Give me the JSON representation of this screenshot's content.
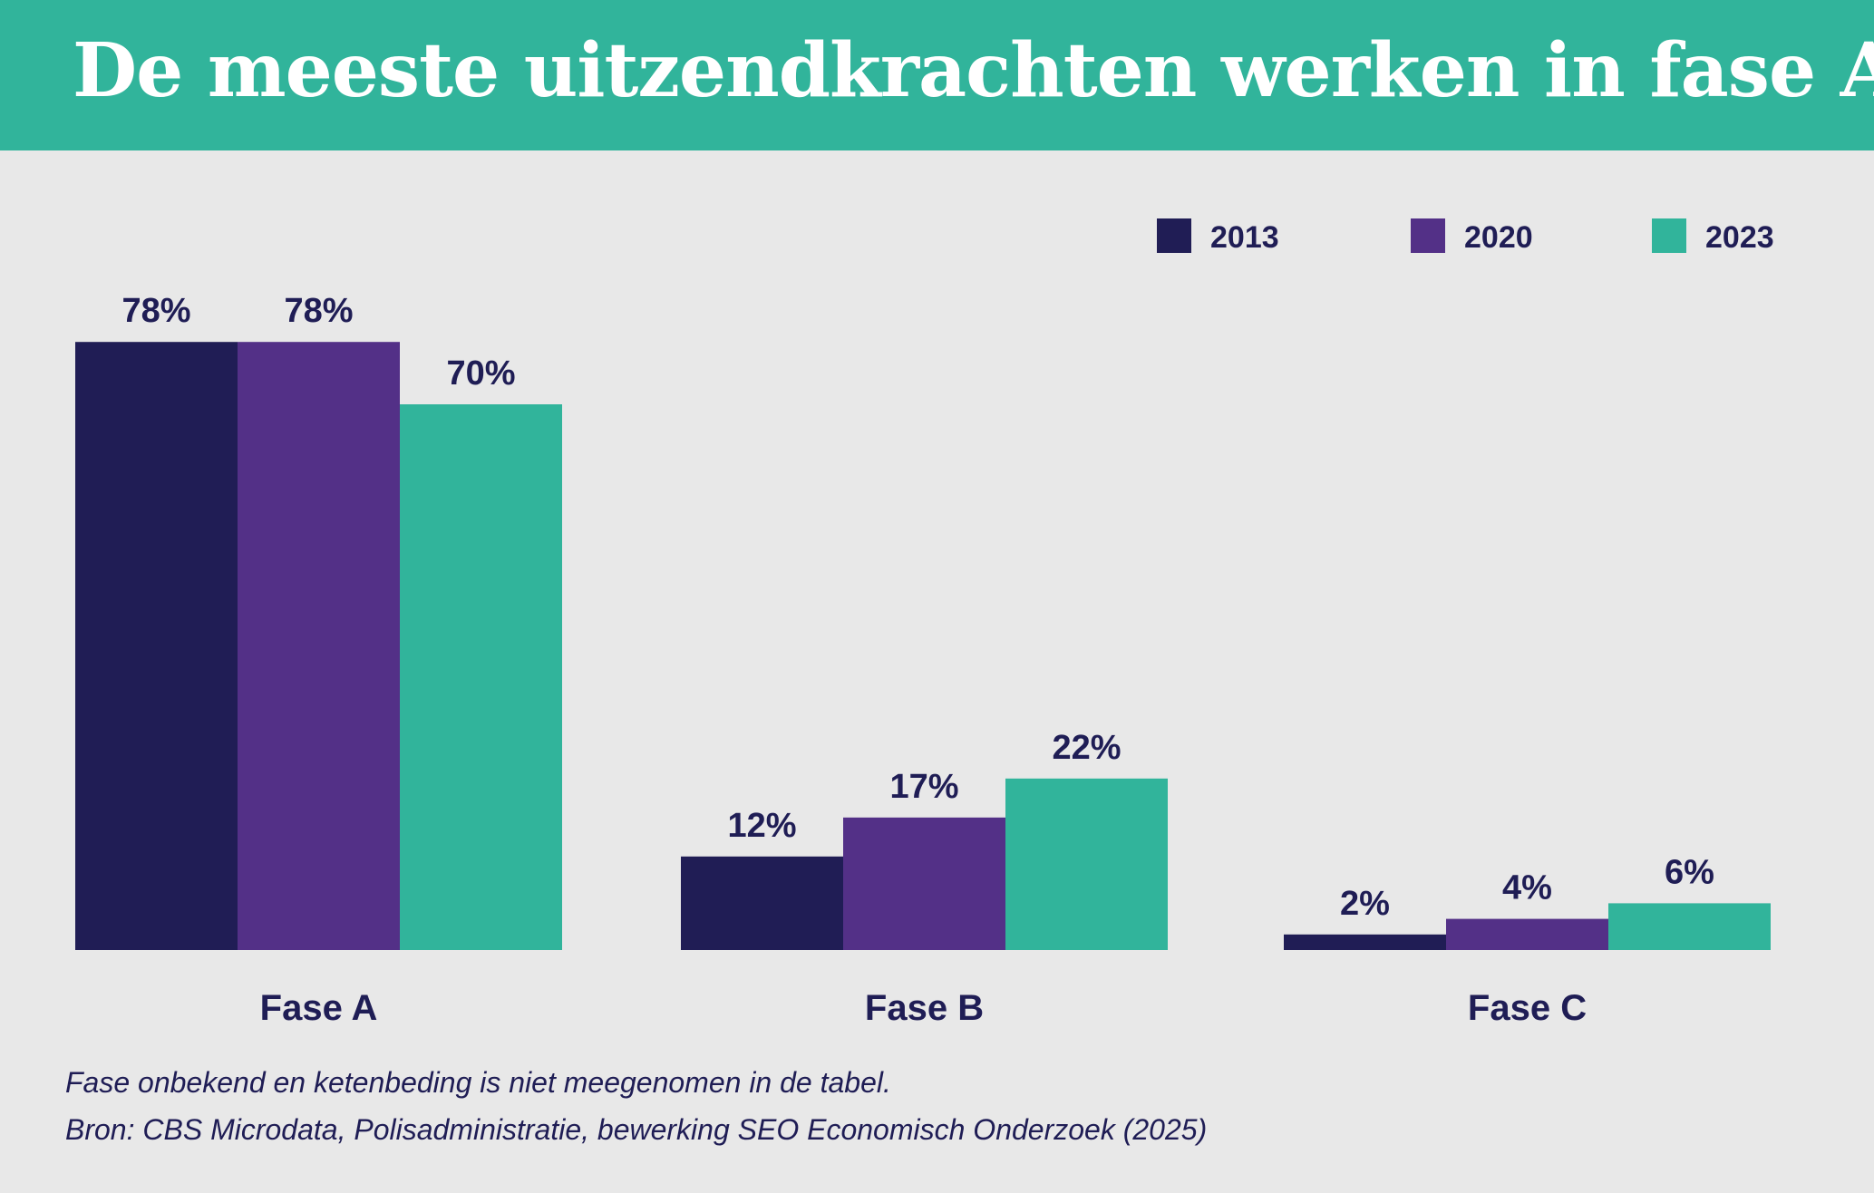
{
  "title": "De meeste uitzendkrachten werken in fase A",
  "chart_data": {
    "type": "bar",
    "categories": [
      "Fase A",
      "Fase B",
      "Fase C"
    ],
    "series": [
      {
        "name": "2013",
        "color": "#201d55",
        "values": [
          78,
          12,
          2
        ],
        "labels": [
          "78%",
          "12%",
          "2%"
        ]
      },
      {
        "name": "2020",
        "color": "#533087",
        "values": [
          78,
          17,
          4
        ],
        "labels": [
          "78%",
          "17%",
          "4%"
        ]
      },
      {
        "name": "2023",
        "color": "#31b49b",
        "values": [
          70,
          22,
          6
        ],
        "labels": [
          "70%",
          "22%",
          "6%"
        ]
      }
    ],
    "ylim": [
      0,
      100
    ],
    "grid": false,
    "legend": "top-right"
  },
  "notes": {
    "line1": "Fase onbekend en ketenbeding is niet meegenomen in de tabel.",
    "line2": "Bron: CBS Microdata, Polisadministratie, bewerking SEO Economisch Onderzoek (2025)"
  },
  "colors": {
    "header_bg": "#31b49b",
    "background": "#e8e8e8",
    "text": "#1f1d55"
  }
}
